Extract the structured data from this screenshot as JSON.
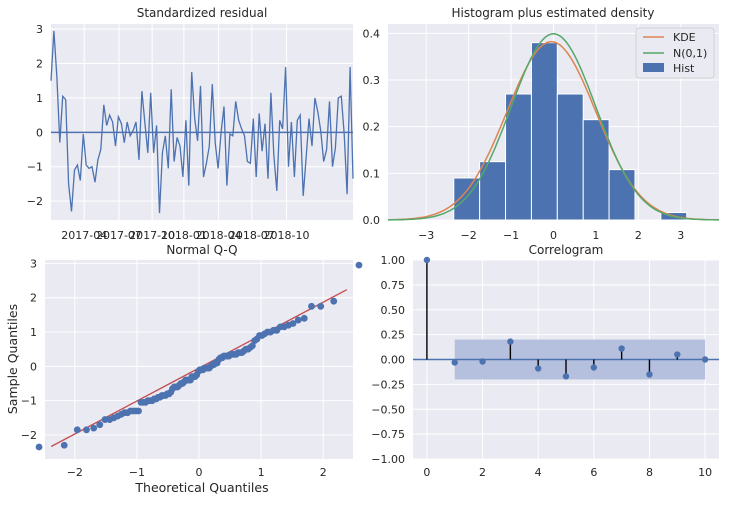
{
  "colors": {
    "axes_bg": "#eaeaf2",
    "grid": "#ffffff",
    "blue": "#4c72b0",
    "orange": "#dd8452",
    "green": "#55a868",
    "red": "#c44e52",
    "band": "#b4c0dd"
  },
  "chart_data": [
    {
      "type": "line",
      "title": "Standardized residual",
      "xlabel": "",
      "ylabel": "",
      "x_tick_labels": [
        "2017-04",
        "2017-07",
        "2017-10",
        "2018-01",
        "2018-04",
        "2018-07",
        "2018-10"
      ],
      "y_ticks": [
        -2,
        -1,
        0,
        1,
        2,
        3
      ],
      "ylim": [
        -2.55,
        3.15
      ],
      "xlim": [
        0,
        100
      ],
      "x_tick_positions": [
        11,
        22.5,
        33.5,
        44,
        55.5,
        66.5,
        78
      ],
      "hline": 0,
      "grid": true,
      "series": [
        {
          "values": [
            1.5,
            2.95,
            1.6,
            -0.3,
            1.05,
            0.95,
            -1.5,
            -2.3,
            -1.1,
            -0.95,
            -1.4,
            -0.05,
            -0.95,
            -1.05,
            -1.0,
            -1.45,
            -0.8,
            -0.5,
            0.8,
            0.2,
            0.5,
            0.3,
            -0.4,
            0.45,
            0.25,
            -0.3,
            0.3,
            -0.1,
            0.05,
            0.3,
            -0.8,
            1.2,
            0.3,
            -0.6,
            1.15,
            -0.6,
            0.2,
            -2.35,
            -0.6,
            -0.1,
            -1.05,
            1.25,
            -0.85,
            -0.15,
            -0.4,
            -1.3,
            0.35,
            -1.55,
            1.75,
            0.4,
            -0.25,
            1.35,
            -1.3,
            -0.9,
            -0.4,
            1.4,
            -0.3,
            -1.05,
            0.0,
            0.75,
            -1.55,
            -0.05,
            -0.1,
            0.9,
            0.35,
            0.1,
            -0.1,
            -0.85,
            -0.9,
            0.4,
            -1.3,
            0.55,
            -0.55,
            0.25,
            -1.35,
            1.15,
            -0.65,
            -1.7,
            0.35,
            0.1,
            1.9,
            -1.0,
            0.3,
            -1.3,
            0.35,
            0.5,
            -1.85,
            -0.75,
            0.4,
            -0.4,
            1.0,
            0.6,
            0.05,
            -0.85,
            -0.5,
            0.9,
            -1.0,
            -0.45,
            1.0,
            1.05,
            -0.05,
            -1.8,
            1.9,
            -1.35
          ],
          "color": "#4c72b0"
        }
      ]
    },
    {
      "type": "bar",
      "title": "Histogram plus estimated density",
      "xlabel": "",
      "ylabel": "",
      "x_ticks": [
        -3,
        -2,
        -1,
        0,
        1,
        2,
        3
      ],
      "y_ticks": [
        0.0,
        0.1,
        0.2,
        0.3,
        0.4
      ],
      "xlim": [
        -3.9,
        3.9
      ],
      "ylim": [
        0,
        0.42
      ],
      "bins": [
        {
          "x0": -2.35,
          "x1": -1.74,
          "value": 0.09
        },
        {
          "x0": -1.74,
          "x1": -1.13,
          "value": 0.125
        },
        {
          "x0": -1.13,
          "x1": -0.52,
          "value": 0.27
        },
        {
          "x0": -0.52,
          "x1": 0.09,
          "value": 0.38
        },
        {
          "x0": 0.09,
          "x1": 0.7,
          "value": 0.27
        },
        {
          "x0": 0.7,
          "x1": 1.31,
          "value": 0.215
        },
        {
          "x0": 1.31,
          "x1": 1.92,
          "value": 0.108
        },
        {
          "x0": 1.92,
          "x1": 2.53,
          "value": 0.0
        },
        {
          "x0": 2.53,
          "x1": 3.14,
          "value": 0.016
        }
      ],
      "series": [
        {
          "name": "KDE",
          "color": "#dd8452",
          "kind": "kde",
          "mean": -0.05,
          "sd": 1.05,
          "peak": 0.382
        },
        {
          "name": "N(0,1)",
          "color": "#55a868",
          "kind": "normal",
          "mean": 0,
          "sd": 1
        }
      ],
      "hist_label": "Hist",
      "legend": "top-right",
      "grid": true
    },
    {
      "type": "scatter",
      "title": "Normal Q-Q",
      "xlabel": "Theoretical Quantiles",
      "ylabel": "Sample Quantiles",
      "x_ticks": [
        -2,
        -1,
        0,
        1,
        2
      ],
      "y_ticks": [
        -2,
        -1,
        0,
        1,
        2,
        3
      ],
      "xlim": [
        -2.48,
        2.48
      ],
      "ylim": [
        -2.7,
        3.1
      ],
      "reference_line": {
        "slope": 0.96,
        "intercept": -0.05,
        "color": "#c44e52"
      },
      "grid": true,
      "n_points": 100,
      "points_sample": [
        -2.35,
        -2.3,
        -1.85,
        -1.85,
        -1.8,
        -1.7,
        -1.55,
        -1.55,
        -1.5,
        -1.45,
        -1.4,
        -1.35,
        -1.35,
        -1.3,
        -1.3,
        -1.3,
        -1.3,
        -1.05,
        -1.05,
        -1.05,
        -1.0,
        -1.0,
        -1.0,
        -0.95,
        -0.95,
        -0.9,
        -0.9,
        -0.85,
        -0.85,
        -0.85,
        -0.8,
        -0.8,
        -0.75,
        -0.65,
        -0.6,
        -0.6,
        -0.6,
        -0.55,
        -0.5,
        -0.5,
        -0.45,
        -0.4,
        -0.4,
        -0.4,
        -0.4,
        -0.3,
        -0.3,
        -0.3,
        -0.25,
        -0.15,
        -0.1,
        -0.1,
        -0.1,
        -0.05,
        -0.05,
        -0.05,
        -0.05,
        0.0,
        0.05,
        0.05,
        0.1,
        0.1,
        0.2,
        0.25,
        0.25,
        0.3,
        0.3,
        0.3,
        0.3,
        0.35,
        0.35,
        0.35,
        0.35,
        0.4,
        0.4,
        0.4,
        0.45,
        0.5,
        0.5,
        0.55,
        0.6,
        0.75,
        0.8,
        0.9,
        0.9,
        0.95,
        1.0,
        1.0,
        1.05,
        1.05,
        1.15,
        1.15,
        1.2,
        1.25,
        1.35,
        1.4,
        1.75,
        1.75,
        1.9,
        2.95
      ]
    },
    {
      "type": "scatter",
      "title": "Correlogram",
      "xlabel": "",
      "ylabel": "",
      "x_ticks": [
        0,
        2,
        4,
        6,
        8,
        10
      ],
      "y_ticks": [
        -1.0,
        -0.75,
        -0.5,
        -0.25,
        0.0,
        0.25,
        0.5,
        0.75,
        1.0
      ],
      "xlim": [
        -0.5,
        10.5
      ],
      "ylim": [
        -1.0,
        1.0
      ],
      "lags": [
        0,
        1,
        2,
        3,
        4,
        5,
        6,
        7,
        8,
        9,
        10
      ],
      "acf": [
        1.0,
        -0.03,
        -0.02,
        0.18,
        -0.09,
        -0.17,
        -0.08,
        0.11,
        -0.15,
        0.05,
        0.0
      ],
      "confidence_band": {
        "from_lag": 1,
        "to_lag": 10,
        "upper": 0.2,
        "lower": -0.2
      },
      "grid": true
    }
  ],
  "panels": {
    "resid": {
      "title": "Standardized residual"
    },
    "hist": {
      "title": "Histogram plus estimated density",
      "legend_kde": "KDE",
      "legend_norm": "N(0,1)",
      "legend_hist": "Hist"
    },
    "qq": {
      "title": "Normal Q-Q",
      "xlabel": "Theoretical Quantiles",
      "ylabel": "Sample Quantiles"
    },
    "corr": {
      "title": "Correlogram"
    }
  }
}
